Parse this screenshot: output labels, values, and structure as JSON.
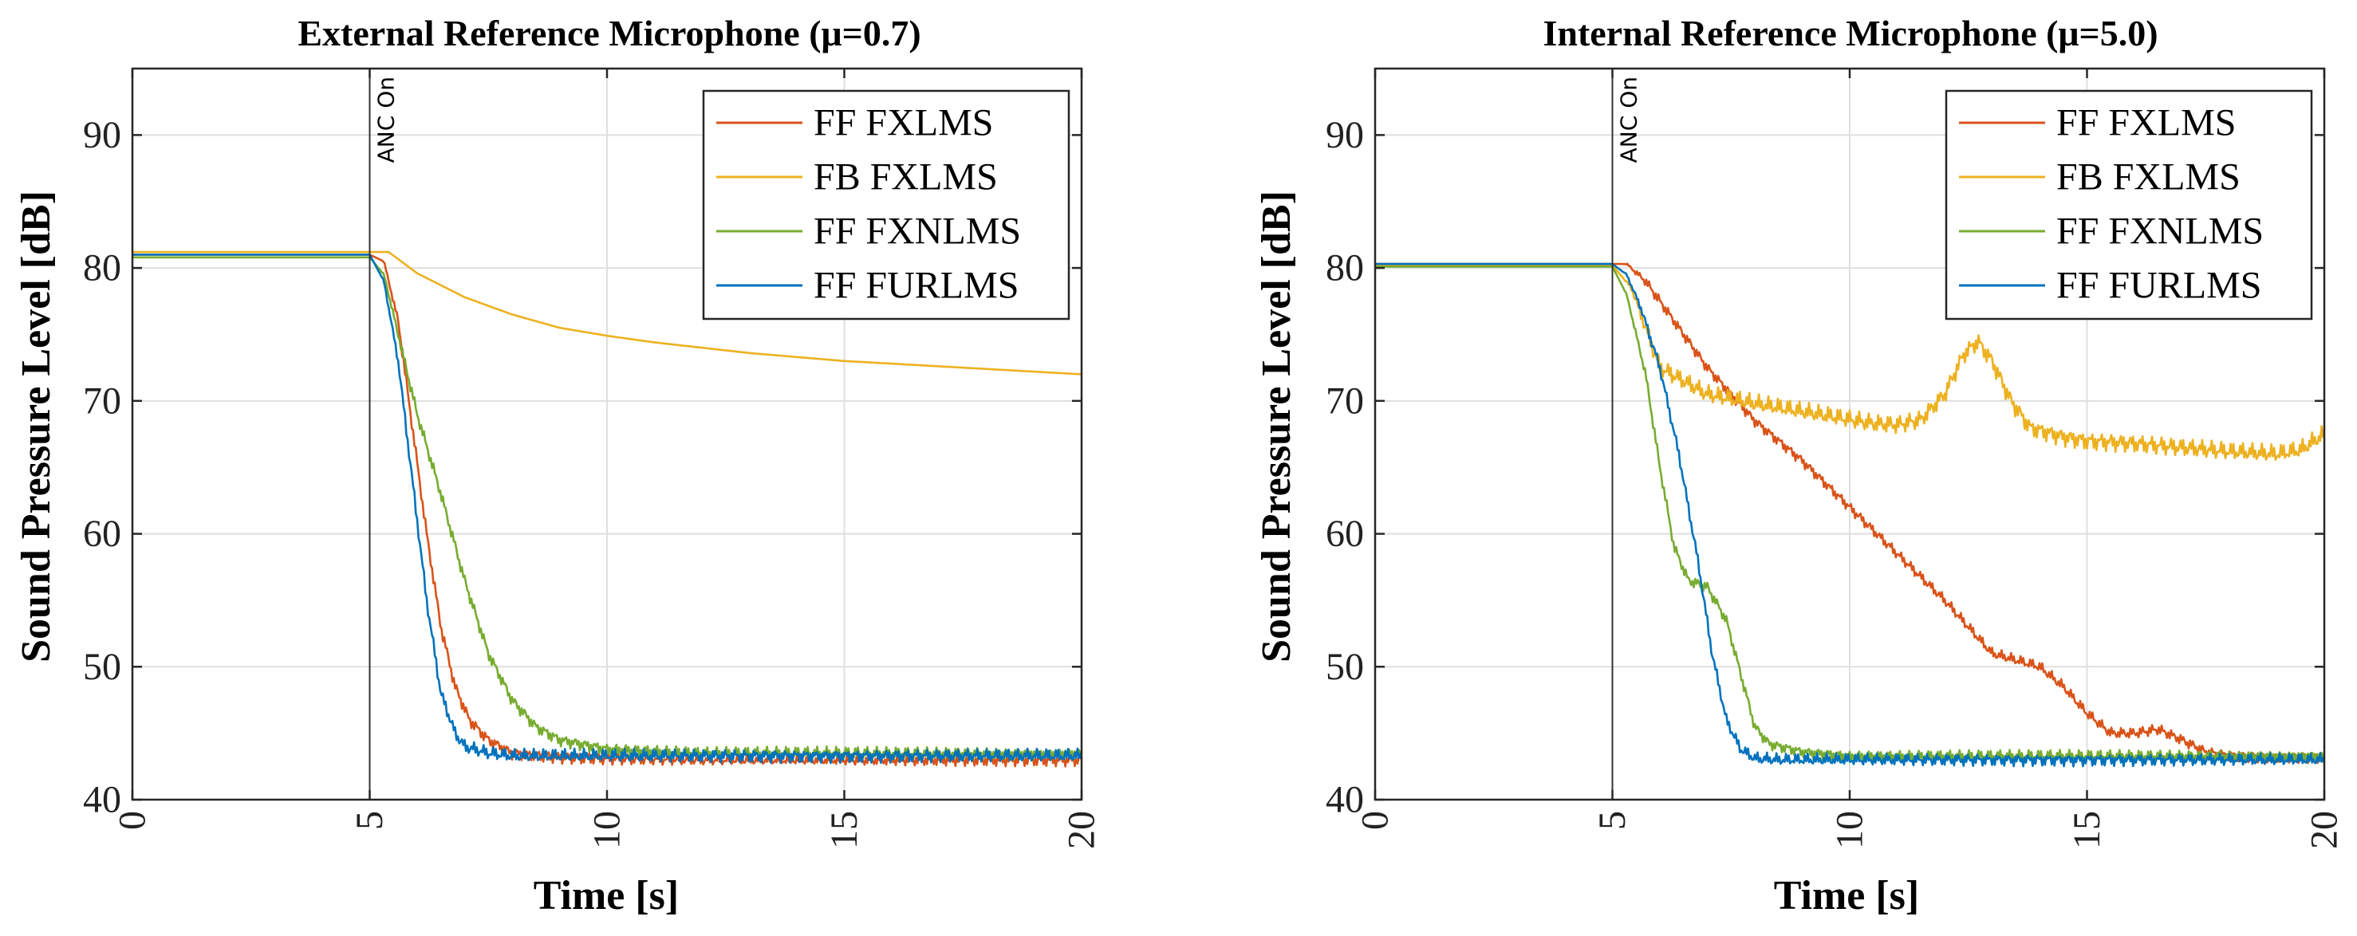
{
  "chart_data": [
    {
      "type": "line",
      "title": "External Reference Microphone (μ=0.7)",
      "xlabel": "Time [s]",
      "ylabel": "Sound Pressure Level [dB]",
      "xlim": [
        0,
        20
      ],
      "ylim": [
        40,
        95
      ],
      "xticks": [
        0,
        5,
        10,
        15,
        20
      ],
      "yticks": [
        40,
        50,
        60,
        70,
        80,
        90
      ],
      "grid": true,
      "legend_position": "top-right",
      "annotation": {
        "text": "ANC On",
        "x": 5
      },
      "series": [
        {
          "name": "FF FXLMS",
          "color": "#D95319",
          "x": [
            0,
            5,
            5.3,
            5.6,
            5.9,
            6.2,
            6.5,
            6.8,
            7.1,
            7.5,
            8,
            9,
            10,
            12,
            15,
            20
          ],
          "y": [
            81,
            81,
            80.5,
            76,
            68,
            60,
            53,
            48.5,
            46,
            44.5,
            43.5,
            43.2,
            43.1,
            43,
            43,
            43
          ],
          "noise": 0.5
        },
        {
          "name": "FB FXLMS",
          "color": "#EDB120",
          "x": [
            0,
            5,
            5.4,
            6,
            7,
            8,
            9,
            10,
            11,
            12,
            13,
            14,
            15,
            16,
            17,
            18,
            19,
            20
          ],
          "y": [
            81.2,
            81.2,
            81.2,
            79.6,
            77.8,
            76.5,
            75.5,
            74.9,
            74.4,
            74,
            73.6,
            73.3,
            73,
            72.8,
            72.6,
            72.4,
            72.2,
            72
          ],
          "noise": 0
        },
        {
          "name": "FF FXNLMS",
          "color": "#77AC30",
          "x": [
            0,
            5,
            5.3,
            5.6,
            6,
            6.5,
            7,
            7.5,
            8,
            8.5,
            9,
            10,
            12,
            15,
            20
          ],
          "y": [
            80.8,
            80.8,
            79.5,
            75,
            69,
            63,
            56.5,
            51,
            47.5,
            45.5,
            44.5,
            43.8,
            43.5,
            43.5,
            43.5
          ],
          "noise": 0.5
        },
        {
          "name": "FF FURLMS",
          "color": "#0072BD",
          "x": [
            0,
            5,
            5.3,
            5.6,
            5.9,
            6.2,
            6.5,
            6.8,
            7,
            7.5,
            8,
            10,
            12,
            15,
            20
          ],
          "y": [
            81,
            81,
            79,
            73,
            64,
            55,
            48,
            45,
            44,
            43.5,
            43.3,
            43.3,
            43.3,
            43.3,
            43.3
          ],
          "noise": 0.55
        }
      ]
    },
    {
      "type": "line",
      "title": "Internal Reference Microphone (μ=5.0)",
      "xlabel": "Time [s]",
      "ylabel": "Sound Pressure Level [dB]",
      "xlim": [
        0,
        20
      ],
      "ylim": [
        40,
        95
      ],
      "xticks": [
        0,
        5,
        10,
        15,
        20
      ],
      "yticks": [
        40,
        50,
        60,
        70,
        80,
        90
      ],
      "grid": true,
      "legend_position": "top-right",
      "annotation": {
        "text": "ANC On",
        "x": 5
      },
      "series": [
        {
          "name": "FF FXLMS",
          "color": "#D95319",
          "x": [
            0,
            5,
            5.3,
            5.7,
            6.2,
            7,
            8,
            9,
            10,
            11,
            12,
            12.5,
            13,
            13.5,
            14,
            14.5,
            15,
            15.5,
            16,
            16.5,
            17,
            17.5,
            18,
            19,
            20
          ],
          "y": [
            80.3,
            80.3,
            80.3,
            79,
            76.5,
            72.5,
            68.5,
            65.5,
            62,
            58.5,
            55,
            53,
            51,
            50.5,
            50,
            48.5,
            46.5,
            45,
            45,
            45.3,
            44.5,
            43.6,
            43.3,
            43.2,
            43.2
          ],
          "noise": 0.45
        },
        {
          "name": "FB FXLMS",
          "color": "#EDB120",
          "x": [
            0,
            5,
            5.4,
            6,
            7,
            8,
            9,
            10,
            10.5,
            11,
            11.5,
            12,
            12.4,
            12.7,
            13,
            13.4,
            13.8,
            14.5,
            15,
            16,
            17,
            18,
            19,
            19.5,
            20
          ],
          "y": [
            80.2,
            80.2,
            78.5,
            72.5,
            70.5,
            69.8,
            69.2,
            68.6,
            68.3,
            68.2,
            68.6,
            70.5,
            73.5,
            74.5,
            73,
            70,
            68,
            67.3,
            67,
            66.8,
            66.5,
            66.2,
            66,
            66.3,
            67.5
          ],
          "noise": 0.75
        },
        {
          "name": "FF FXNLMS",
          "color": "#77AC30",
          "x": [
            0,
            5,
            5.3,
            5.7,
            6,
            6.3,
            6.6,
            7,
            7.4,
            7.7,
            8,
            8.3,
            9,
            10,
            12,
            15,
            20
          ],
          "y": [
            80.1,
            80.1,
            78,
            72,
            65,
            59,
            56.5,
            56,
            53.5,
            49.5,
            45.5,
            44.2,
            43.6,
            43.3,
            43.3,
            43.3,
            43.3
          ],
          "noise": 0.45
        },
        {
          "name": "FF FURLMS",
          "color": "#0072BD",
          "x": [
            0,
            5,
            5.3,
            5.6,
            6,
            6.4,
            6.8,
            7.1,
            7.4,
            7.7,
            8,
            8.5,
            10,
            12,
            15,
            20
          ],
          "y": [
            80.3,
            80.3,
            79.5,
            77,
            72.5,
            66,
            58,
            51,
            46,
            43.8,
            43.1,
            43,
            43,
            43,
            43,
            43
          ],
          "noise": 0.5
        }
      ]
    }
  ]
}
